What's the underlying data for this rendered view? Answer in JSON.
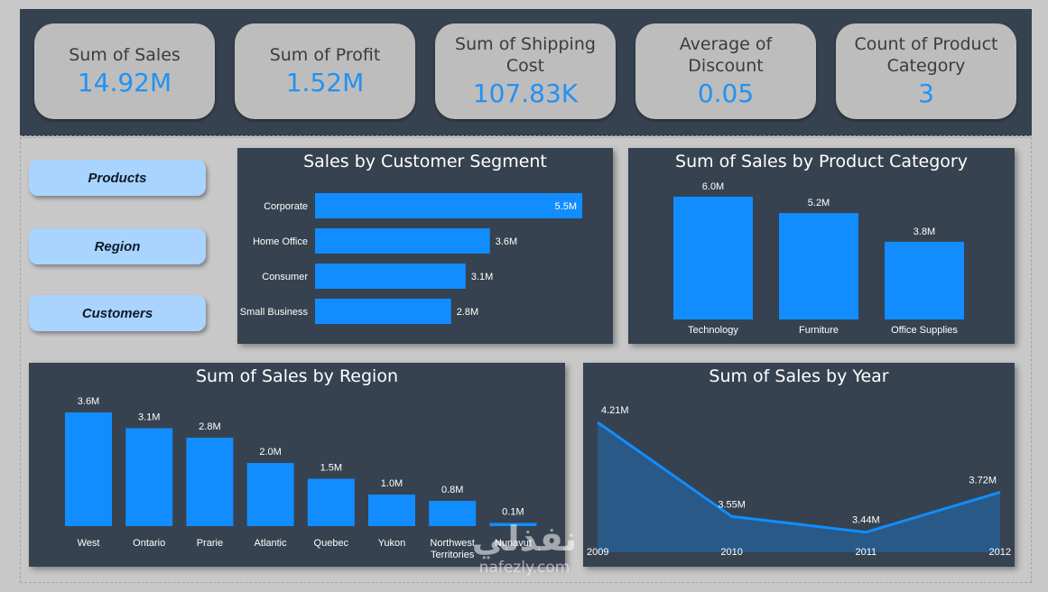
{
  "kpis": [
    {
      "title": "Sum of Sales",
      "value": "14.92M"
    },
    {
      "title": "Sum of Profit",
      "value": "1.52M"
    },
    {
      "title": "Sum of Shipping Cost",
      "value": "107.83K"
    },
    {
      "title": "Average of Discount",
      "value": "0.05"
    },
    {
      "title": "Count of Product Category",
      "value": "3"
    }
  ],
  "nav": {
    "products": "Products",
    "region": "Region",
    "customers": "Customers"
  },
  "colors": {
    "bar": "#118dff",
    "panel": "#36424f",
    "kpi_value": "#2391f3"
  },
  "chart_data": [
    {
      "id": "segment",
      "type": "bar",
      "orientation": "horizontal",
      "title": "Sales by Customer Segment",
      "categories": [
        "Corporate",
        "Home Office",
        "Consumer",
        "Small Business"
      ],
      "values": [
        5.5,
        3.6,
        3.1,
        2.8
      ],
      "labels": [
        "5.5M",
        "3.6M",
        "3.1M",
        "2.8M"
      ],
      "unit": "M",
      "xlim": [
        0,
        5.5
      ]
    },
    {
      "id": "category",
      "type": "bar",
      "title": "Sum of Sales by Product Category",
      "categories": [
        "Technology",
        "Furniture",
        "Office Supplies"
      ],
      "values": [
        6.0,
        5.2,
        3.8
      ],
      "labels": [
        "6.0M",
        "5.2M",
        "3.8M"
      ],
      "unit": "M",
      "ylim": [
        0,
        6.0
      ]
    },
    {
      "id": "region",
      "type": "bar",
      "title": "Sum of Sales by Region",
      "categories": [
        "West",
        "Ontario",
        "Prarie",
        "Atlantic",
        "Quebec",
        "Yukon",
        "Northwest Territories",
        "Nunavut"
      ],
      "category_lines": [
        [
          "West"
        ],
        [
          "Ontario"
        ],
        [
          "Prarie"
        ],
        [
          "Atlantic"
        ],
        [
          "Quebec"
        ],
        [
          "Yukon"
        ],
        [
          "Northwest",
          "Territories"
        ],
        [
          "Nunavut"
        ]
      ],
      "values": [
        3.6,
        3.1,
        2.8,
        2.0,
        1.5,
        1.0,
        0.8,
        0.1
      ],
      "labels": [
        "3.6M",
        "3.1M",
        "2.8M",
        "2.0M",
        "1.5M",
        "1.0M",
        "0.8M",
        "0.1M"
      ],
      "unit": "M",
      "ylim": [
        0,
        3.6
      ]
    },
    {
      "id": "year",
      "type": "area",
      "title": "Sum of Sales by Year",
      "x": [
        "2009",
        "2010",
        "2011",
        "2012"
      ],
      "values": [
        4.21,
        3.55,
        3.44,
        3.72
      ],
      "labels": [
        "4.21M",
        "3.55M",
        "3.44M",
        "3.72M"
      ],
      "unit": "M",
      "ylim": [
        3.4,
        4.21
      ]
    }
  ],
  "watermark": {
    "arabic": "نفذلي",
    "latin": "nafezly.com"
  }
}
